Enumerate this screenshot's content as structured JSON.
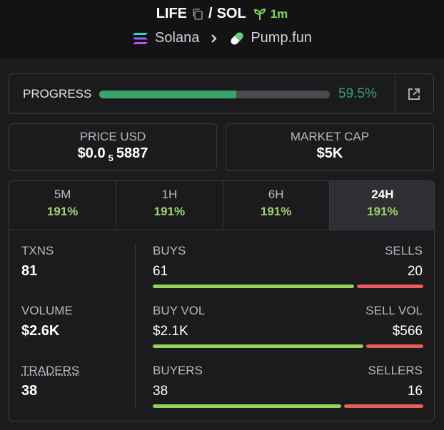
{
  "header": {
    "token": "LIFE",
    "separator": "/",
    "quote": "SOL",
    "age": "1m",
    "chain": "Solana",
    "dex": "Pump.fun"
  },
  "progress": {
    "label": "PROGRESS",
    "value": 59.5,
    "value_label": "59.5%"
  },
  "price": {
    "label": "PRICE USD",
    "prefix": "$0.0",
    "zero_count": "5",
    "digits": "5887"
  },
  "market_cap": {
    "label": "MARKET CAP",
    "value": "$5K"
  },
  "tabs": [
    {
      "label": "5M",
      "change": "191%"
    },
    {
      "label": "1H",
      "change": "191%"
    },
    {
      "label": "6H",
      "change": "191%"
    },
    {
      "label": "24H",
      "change": "191%"
    }
  ],
  "active_tab": 3,
  "stats": [
    {
      "label": "TXNS",
      "value": 81,
      "buy": {
        "label": "BUYS",
        "value": 61
      },
      "sell": {
        "label": "SELLS",
        "value": 20
      }
    },
    {
      "label": "VOLUME",
      "value": "$2.6K",
      "buy": {
        "label": "BUY VOL",
        "value": 2100,
        "value_label": "$2.1K"
      },
      "sell": {
        "label": "SELL VOL",
        "value": 566,
        "value_label": "$566"
      }
    },
    {
      "label": "TRADERS",
      "value": 38,
      "buy": {
        "label": "BUYERS",
        "value": 38
      },
      "sell": {
        "label": "SELLERS",
        "value": 16
      }
    }
  ]
}
